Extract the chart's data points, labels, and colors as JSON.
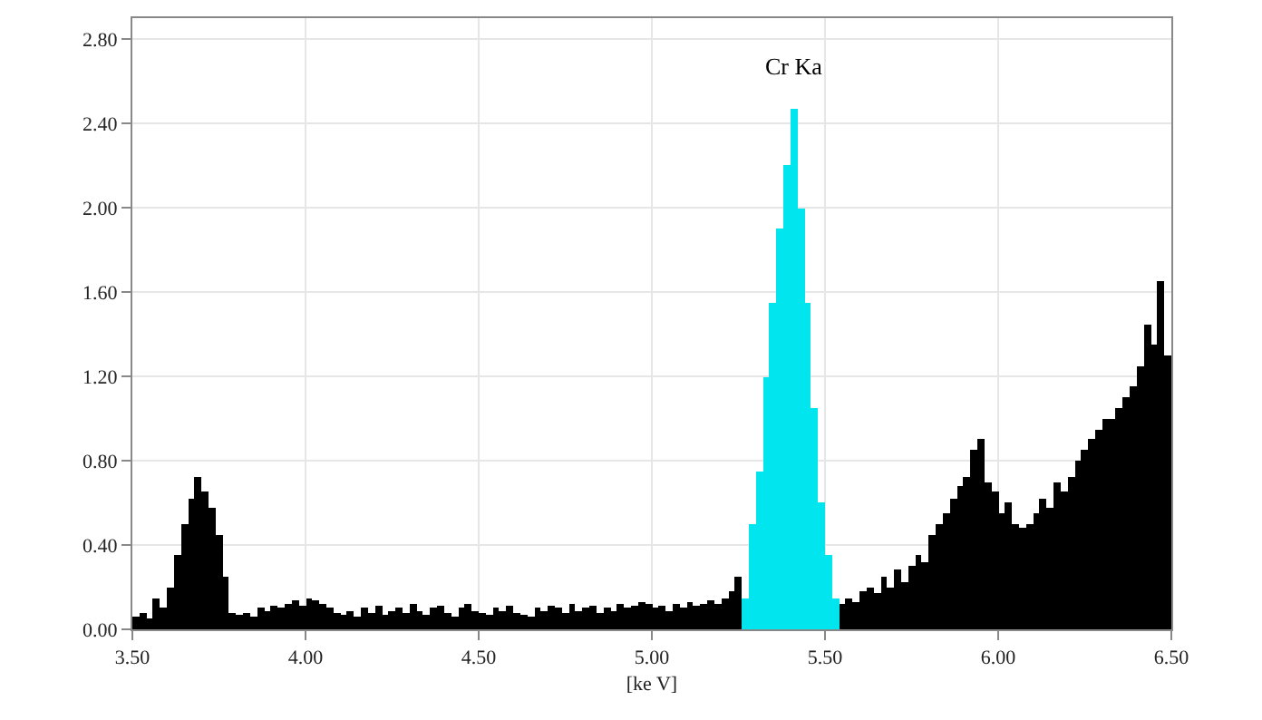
{
  "chart_data": {
    "type": "histogram",
    "xlabel": "[ke V]",
    "annotations": [
      "Cr Ka"
    ],
    "bins": [
      3.5,
      3.52,
      3.54,
      3.56,
      3.58,
      3.6,
      3.62,
      3.64,
      3.66,
      3.68,
      3.7,
      3.72,
      3.74,
      3.76,
      3.78,
      3.8,
      3.82,
      3.84,
      3.86,
      3.88,
      3.9,
      3.92,
      3.94,
      3.96,
      3.98,
      4.0,
      4.02,
      4.04,
      4.06,
      4.08,
      4.1,
      4.12,
      4.14,
      4.16,
      4.18,
      4.2,
      4.22,
      4.24,
      4.26,
      4.28,
      4.3,
      4.32,
      4.34,
      4.36,
      4.38,
      4.4,
      4.42,
      4.44,
      4.46,
      4.48,
      4.5,
      4.52,
      4.54,
      4.56,
      4.58,
      4.6,
      4.62,
      4.64,
      4.66,
      4.68,
      4.7,
      4.72,
      4.74,
      4.76,
      4.78,
      4.8,
      4.82,
      4.84,
      4.86,
      4.88,
      4.9,
      4.92,
      4.94,
      4.96,
      4.98,
      5.0,
      5.02,
      5.04,
      5.06,
      5.08,
      5.1,
      5.12,
      5.14,
      5.16,
      5.18,
      5.2,
      5.22,
      5.24,
      5.26,
      5.28,
      5.3,
      5.32,
      5.34,
      5.36,
      5.38,
      5.4,
      5.42,
      5.44,
      5.46,
      5.48,
      5.5,
      5.52,
      5.54,
      5.56,
      5.58,
      5.6,
      5.62,
      5.64,
      5.66,
      5.68,
      5.7,
      5.72,
      5.74,
      5.76,
      5.78,
      5.8,
      5.82,
      5.84,
      5.86,
      5.88,
      5.9,
      5.92,
      5.94,
      5.96,
      5.98,
      6.0,
      6.02,
      6.04,
      6.06,
      6.08,
      6.1,
      6.12,
      6.14,
      6.16,
      6.18,
      6.2,
      6.22,
      6.24,
      6.26,
      6.28,
      6.3,
      6.32,
      6.34,
      6.36,
      6.38,
      6.4,
      6.42,
      6.44,
      6.46,
      6.48,
      6.5
    ],
    "values": [
      0.06,
      0.08,
      0.05,
      0.15,
      0.1,
      0.2,
      0.35,
      0.5,
      0.62,
      0.72,
      0.65,
      0.58,
      0.45,
      0.25,
      0.08,
      0.07,
      0.08,
      0.06,
      0.1,
      0.09,
      0.11,
      0.1,
      0.12,
      0.14,
      0.11,
      0.15,
      0.14,
      0.12,
      0.1,
      0.08,
      0.07,
      0.09,
      0.06,
      0.1,
      0.08,
      0.11,
      0.07,
      0.09,
      0.1,
      0.08,
      0.12,
      0.09,
      0.07,
      0.1,
      0.11,
      0.08,
      0.06,
      0.1,
      0.12,
      0.09,
      0.08,
      0.07,
      0.1,
      0.09,
      0.11,
      0.08,
      0.07,
      0.06,
      0.1,
      0.09,
      0.11,
      0.1,
      0.08,
      0.12,
      0.09,
      0.1,
      0.11,
      0.08,
      0.1,
      0.09,
      0.12,
      0.1,
      0.11,
      0.13,
      0.12,
      0.1,
      0.11,
      0.09,
      0.12,
      0.1,
      0.13,
      0.11,
      0.12,
      0.14,
      0.12,
      0.15,
      0.18,
      0.25,
      0.15,
      0.5,
      0.75,
      1.2,
      1.55,
      1.9,
      2.2,
      2.47,
      2.0,
      1.55,
      1.05,
      0.6,
      0.35,
      0.15,
      0.12,
      0.15,
      0.13,
      0.18,
      0.2,
      0.17,
      0.25,
      0.2,
      0.28,
      0.22,
      0.3,
      0.35,
      0.32,
      0.45,
      0.5,
      0.55,
      0.62,
      0.68,
      0.72,
      0.85,
      0.9,
      0.7,
      0.65,
      0.55,
      0.6,
      0.5,
      0.48,
      0.5,
      0.55,
      0.62,
      0.58,
      0.7,
      0.65,
      0.72,
      0.8,
      0.85,
      0.9,
      0.95,
      1.0,
      1.0,
      1.05,
      1.1,
      1.15,
      1.25,
      1.45,
      1.35,
      1.65,
      1.3
    ],
    "colors": [
      "#000000",
      "#000000",
      "#000000",
      "#000000",
      "#000000",
      "#000000",
      "#000000",
      "#000000",
      "#000000",
      "#000000",
      "#000000",
      "#000000",
      "#000000",
      "#000000",
      "#000000",
      "#000000",
      "#000000",
      "#000000",
      "#000000",
      "#000000",
      "#000000",
      "#000000",
      "#000000",
      "#000000",
      "#000000",
      "#000000",
      "#000000",
      "#000000",
      "#000000",
      "#000000",
      "#000000",
      "#000000",
      "#000000",
      "#000000",
      "#000000",
      "#000000",
      "#000000",
      "#000000",
      "#000000",
      "#000000",
      "#000000",
      "#000000",
      "#000000",
      "#000000",
      "#000000",
      "#000000",
      "#000000",
      "#000000",
      "#000000",
      "#000000",
      "#000000",
      "#000000",
      "#000000",
      "#000000",
      "#000000",
      "#000000",
      "#000000",
      "#000000",
      "#000000",
      "#000000",
      "#000000",
      "#000000",
      "#000000",
      "#000000",
      "#000000",
      "#000000",
      "#000000",
      "#000000",
      "#000000",
      "#000000",
      "#000000",
      "#000000",
      "#000000",
      "#000000",
      "#000000",
      "#000000",
      "#000000",
      "#000000",
      "#000000",
      "#000000",
      "#000000",
      "#000000",
      "#000000",
      "#000000",
      "#000000",
      "#000000",
      "#000000",
      "#000000",
      "#00e5ee",
      "#00e5ee",
      "#00e5ee",
      "#00e5ee",
      "#00e5ee",
      "#00e5ee",
      "#00e5ee",
      "#00e5ee",
      "#00e5ee",
      "#00e5ee",
      "#00e5ee",
      "#00e5ee",
      "#00e5ee",
      "#00e5ee",
      "#000000",
      "#000000",
      "#000000",
      "#000000",
      "#000000",
      "#000000",
      "#000000",
      "#000000",
      "#000000",
      "#000000",
      "#000000",
      "#000000",
      "#000000",
      "#000000",
      "#000000",
      "#000000",
      "#000000",
      "#000000",
      "#000000",
      "#000000",
      "#000000",
      "#000000",
      "#000000",
      "#000000",
      "#000000",
      "#000000",
      "#000000",
      "#000000",
      "#000000",
      "#000000",
      "#000000",
      "#000000",
      "#000000",
      "#000000",
      "#000000",
      "#000000",
      "#000000",
      "#000000",
      "#000000",
      "#000000",
      "#000000",
      "#000000",
      "#000000",
      "#000000",
      "#000000",
      "#000000",
      "#000000",
      "#000000"
    ],
    "xlim": [
      3.5,
      6.5
    ],
    "xticks": [
      {
        "value": 3.5,
        "label": "3.50"
      },
      {
        "value": 4.0,
        "label": "4.00"
      },
      {
        "value": 4.5,
        "label": "4.50"
      },
      {
        "value": 5.0,
        "label": "5.00"
      },
      {
        "value": 5.5,
        "label": "5.50"
      },
      {
        "value": 6.0,
        "label": "6.00"
      },
      {
        "value": 6.5,
        "label": "6.50"
      }
    ],
    "ylim": [
      0,
      2.9
    ],
    "yticks": [
      {
        "value": 0,
        "label": "0.00"
      },
      {
        "value": 0.4,
        "label": "0.40"
      },
      {
        "value": 0.8,
        "label": "0.80"
      },
      {
        "value": 1.2,
        "label": "1.20"
      },
      {
        "value": 1.6,
        "label": "1.60"
      },
      {
        "value": 2.0,
        "label": "2.00"
      },
      {
        "value": 2.4,
        "label": "2.40"
      },
      {
        "value": 2.8,
        "label": "2.80"
      }
    ],
    "grid": true
  }
}
